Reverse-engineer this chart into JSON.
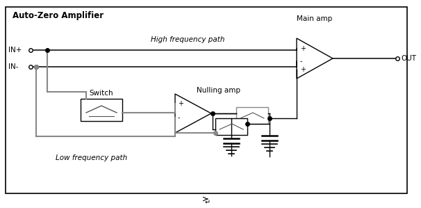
{
  "title": "Auto-Zero Amplifier",
  "bg_color": "#ffffff",
  "labels": {
    "title": "Auto-Zero Amplifier",
    "in_plus": "IN+",
    "in_minus": "IN-",
    "out": "OUT",
    "high_freq": "High frequency path",
    "low_freq": "Low frequency path",
    "main_amp": "Main amp",
    "nulling_amp": "Nulling amp",
    "switch": "Switch"
  },
  "figsize": [
    6.06,
    2.99
  ],
  "dpi": 100
}
